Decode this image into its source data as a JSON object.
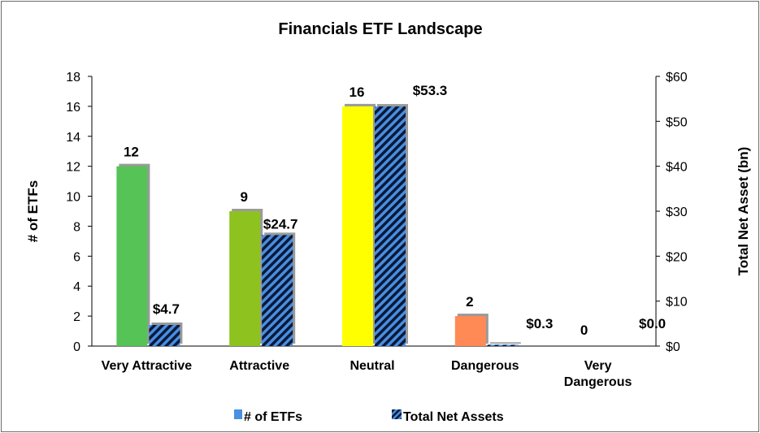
{
  "chart_data": {
    "type": "bar",
    "title": "Financials ETF Landscape",
    "categories": [
      "Very Attractive",
      "Attractive",
      "Neutral",
      "Dangerous",
      "Very Dangerous"
    ],
    "ylabel": "# of ETFs",
    "y2label": "Total Net Asset (bn)",
    "ylim": [
      0,
      18
    ],
    "yticks": [
      "0",
      "2",
      "4",
      "6",
      "8",
      "10",
      "12",
      "14",
      "16",
      "18"
    ],
    "y2lim": [
      0,
      60
    ],
    "y2ticks": [
      "$0",
      "$10",
      "$20",
      "$30",
      "$40",
      "$50",
      "$60"
    ],
    "grid": false,
    "legend_position": "bottom",
    "series": [
      {
        "name": "# of ETFs",
        "axis": "left",
        "values": [
          12,
          9,
          16,
          2,
          0
        ],
        "labels": [
          "12",
          "9",
          "16",
          "2",
          "0"
        ],
        "colors": [
          "#55c355",
          "#8dc21f",
          "#ffff00",
          "#ff8a55",
          "#c00000"
        ]
      },
      {
        "name": "Total Net Assets",
        "axis": "right",
        "values": [
          4.7,
          24.7,
          53.3,
          0.3,
          0.0
        ],
        "labels": [
          "$4.7",
          "$24.7",
          "$53.3",
          "$0.3",
          "$0.0"
        ],
        "pattern": "diagonal-stripes",
        "colors": [
          "#4a90e2",
          "#0a1a3a"
        ]
      }
    ]
  }
}
